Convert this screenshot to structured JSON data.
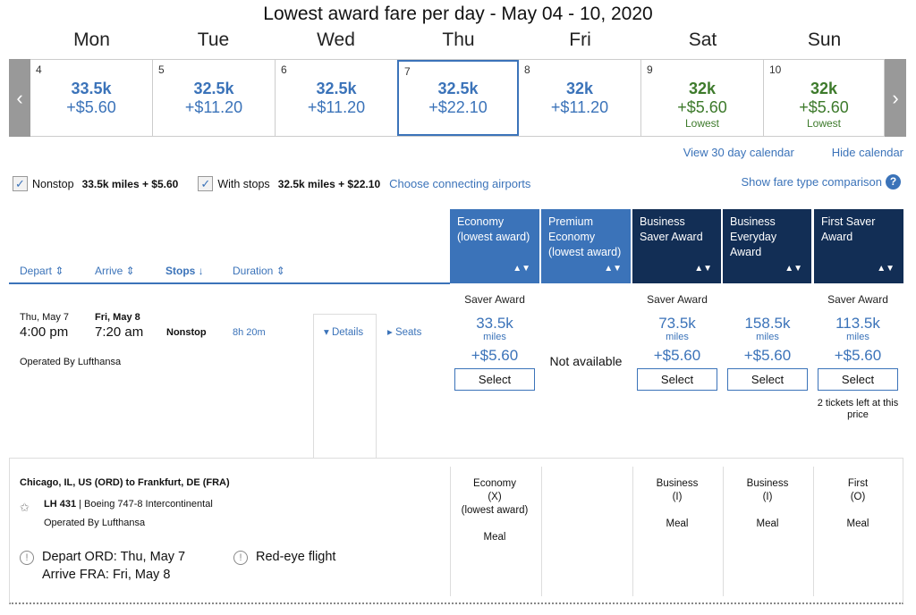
{
  "title": "Lowest award fare per day - May 04 - 10, 2020",
  "calendar": {
    "days": [
      {
        "name": "Mon",
        "num": "4",
        "miles": "33.5k",
        "fee": "+$5.60",
        "note": ""
      },
      {
        "name": "Tue",
        "num": "5",
        "miles": "32.5k",
        "fee": "+$11.20",
        "note": ""
      },
      {
        "name": "Wed",
        "num": "6",
        "miles": "32.5k",
        "fee": "+$11.20",
        "note": ""
      },
      {
        "name": "Thu",
        "num": "7",
        "miles": "32.5k",
        "fee": "+$22.10",
        "note": ""
      },
      {
        "name": "Fri",
        "num": "8",
        "miles": "32k",
        "fee": "+$11.20",
        "note": ""
      },
      {
        "name": "Sat",
        "num": "9",
        "miles": "32k",
        "fee": "+$5.60",
        "note": "Lowest"
      },
      {
        "name": "Sun",
        "num": "10",
        "miles": "32k",
        "fee": "+$5.60",
        "note": "Lowest"
      }
    ],
    "view30": "View 30 day calendar",
    "hide": "Hide calendar",
    "lowest_color": "#3d7a2b",
    "accent": "#3b73b9"
  },
  "filters": {
    "nonstop": "Nonstop",
    "nonstop_price": "33.5k miles + $5.60",
    "stops": "With stops",
    "stops_price": "32.5k miles + $22.10",
    "connecting": "Choose connecting airports",
    "compare": "Show fare type comparison"
  },
  "sort": {
    "depart": "Depart",
    "arrive": "Arrive",
    "stops": "Stops",
    "duration": "Duration"
  },
  "fare_headers": [
    "Economy (lowest award)",
    "Premium Economy (lowest award)",
    "Business Saver Award",
    "Business Everyday Award",
    "First Saver Award"
  ],
  "flight": {
    "depart_date": "Thu, May 7",
    "depart_time": "4:00 pm",
    "arrive_date": "Fri, May 8",
    "arrive_time": "7:20 am",
    "stops": "Nonstop",
    "duration": "8h 20m",
    "operated": "Operated By Lufthansa",
    "details": "Details",
    "seats": "Seats",
    "fares": [
      {
        "type": "Saver Award",
        "miles": "33.5k",
        "unit": "miles",
        "fee": "+$5.60",
        "select": "Select"
      },
      {
        "na": "Not available"
      },
      {
        "type": "Saver Award",
        "miles": "73.5k",
        "unit": "miles",
        "fee": "+$5.60",
        "select": "Select"
      },
      {
        "type": "",
        "miles": "158.5k",
        "unit": "miles",
        "fee": "+$5.60",
        "select": "Select"
      },
      {
        "type": "Saver Award",
        "miles": "113.5k",
        "unit": "miles",
        "fee": "+$5.60",
        "select": "Select",
        "note": "2 tickets left at this price"
      }
    ]
  },
  "segment": {
    "route": "Chicago, IL, US (ORD) to Frankfurt, DE (FRA)",
    "flight_no": "LH 431",
    "aircraft": "| Boeing 747-8 Intercontinental",
    "operated": "Operated By Lufthansa",
    "depart_note": "Depart ORD: Thu, May 7",
    "arrive_note": "Arrive FRA: Fri, May 8",
    "redeye": "Red-eye flight",
    "cabins": [
      {
        "c": "Economy",
        "code": "(X)",
        "extra": "(lowest award)",
        "meal": "Meal"
      },
      {
        "c": "Business",
        "code": "(I)",
        "meal": "Meal"
      },
      {
        "c": "Business",
        "code": "(I)",
        "meal": "Meal"
      },
      {
        "c": "First",
        "code": "(O)",
        "meal": "Meal"
      }
    ]
  }
}
